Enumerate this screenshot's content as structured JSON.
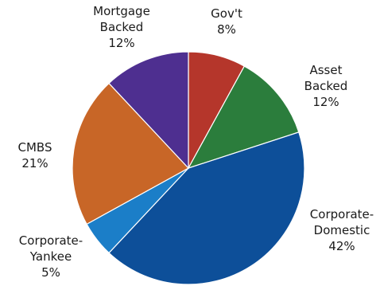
{
  "chart_data": {
    "type": "pie",
    "title": "",
    "start": "12 o'clock",
    "direction": "clockwise",
    "slices": [
      {
        "lines": [
          "Gov't",
          "8%"
        ],
        "value": 8,
        "color": "#b5362b"
      },
      {
        "lines": [
          "Asset",
          "Backed",
          "12%"
        ],
        "value": 12,
        "color": "#2b7d3c"
      },
      {
        "lines": [
          "Corporate-",
          "Domestic",
          "42%"
        ],
        "value": 42,
        "color": "#0d4f99"
      },
      {
        "lines": [
          "Corporate-",
          "Yankee",
          "5%"
        ],
        "value": 5,
        "color": "#1b7ec8"
      },
      {
        "lines": [
          "CMBS",
          "21%"
        ],
        "value": 21,
        "color": "#c86627"
      },
      {
        "lines": [
          "Mortgage",
          "Backed",
          "12%"
        ],
        "value": 12,
        "color": "#4e2f90"
      }
    ]
  }
}
